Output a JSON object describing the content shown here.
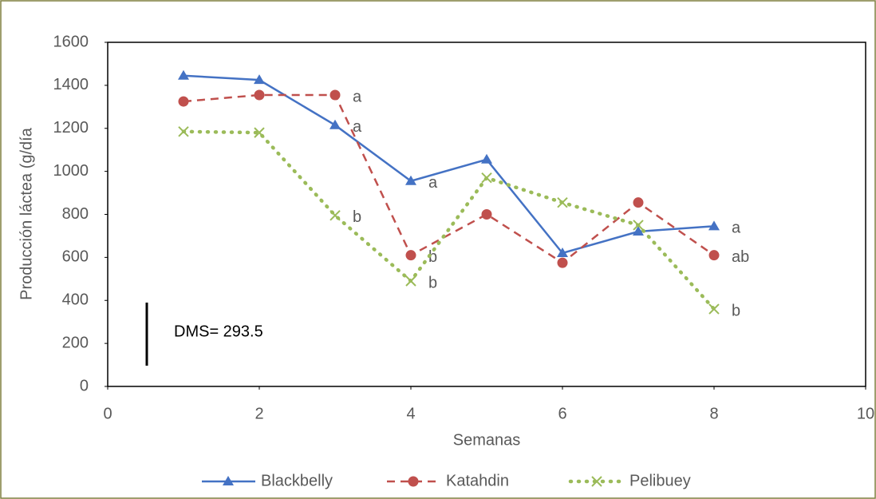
{
  "chart_data": {
    "type": "line",
    "x_label": "Semanas",
    "y_label": "Producción láctea (g/día",
    "x": [
      1,
      2,
      3,
      4,
      5,
      6,
      7,
      8
    ],
    "series": [
      {
        "name": "Blackbelly",
        "color": "#4472c4",
        "values": [
          1445,
          1425,
          1215,
          955,
          1055,
          620,
          720,
          745
        ],
        "point_labels": [
          null,
          null,
          "a",
          "a",
          null,
          null,
          null,
          "a"
        ]
      },
      {
        "name": "Katahdin",
        "color": "#c0504d",
        "values": [
          1325,
          1355,
          1355,
          610,
          800,
          575,
          855,
          610
        ],
        "point_labels": [
          null,
          null,
          "a",
          "b",
          null,
          null,
          null,
          "ab"
        ]
      },
      {
        "name": "Pelibuey",
        "color": "#9bbb59",
        "values": [
          1185,
          1180,
          795,
          490,
          970,
          855,
          750,
          360
        ],
        "point_labels": [
          null,
          null,
          "b",
          "b",
          null,
          null,
          null,
          "b"
        ]
      }
    ],
    "xlim": [
      0,
      10
    ],
    "xticks": [
      0,
      2,
      4,
      6,
      8,
      10
    ],
    "ylim": [
      0,
      1600
    ],
    "yticks": [
      0,
      200,
      400,
      600,
      800,
      1000,
      1200,
      1400,
      1600
    ],
    "dms": {
      "text": "DMS= 293.5",
      "value": 293.5
    },
    "legend": "bottom"
  }
}
